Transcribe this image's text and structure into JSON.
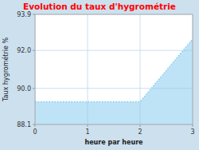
{
  "chart_data": {
    "type": "area",
    "title": "Evolution du taux d'hygrométrie",
    "x_label": "heure par heure",
    "y_label": "Taux hygrométrie %",
    "x": [
      0,
      2,
      3
    ],
    "series": [
      {
        "values": [
          89.3,
          89.3,
          92.6
        ],
        "color": "#88ccee"
      }
    ],
    "xlim": [
      0,
      3
    ],
    "ylim": [
      88.1,
      93.9
    ],
    "xticks": [
      0,
      1,
      2,
      3
    ],
    "yticks": [
      88.1,
      {
        "value": 90.0,
        "label": "90.0"
      },
      {
        "value": 92.0,
        "label": "92.0"
      },
      93.9
    ],
    "grid": true
  }
}
